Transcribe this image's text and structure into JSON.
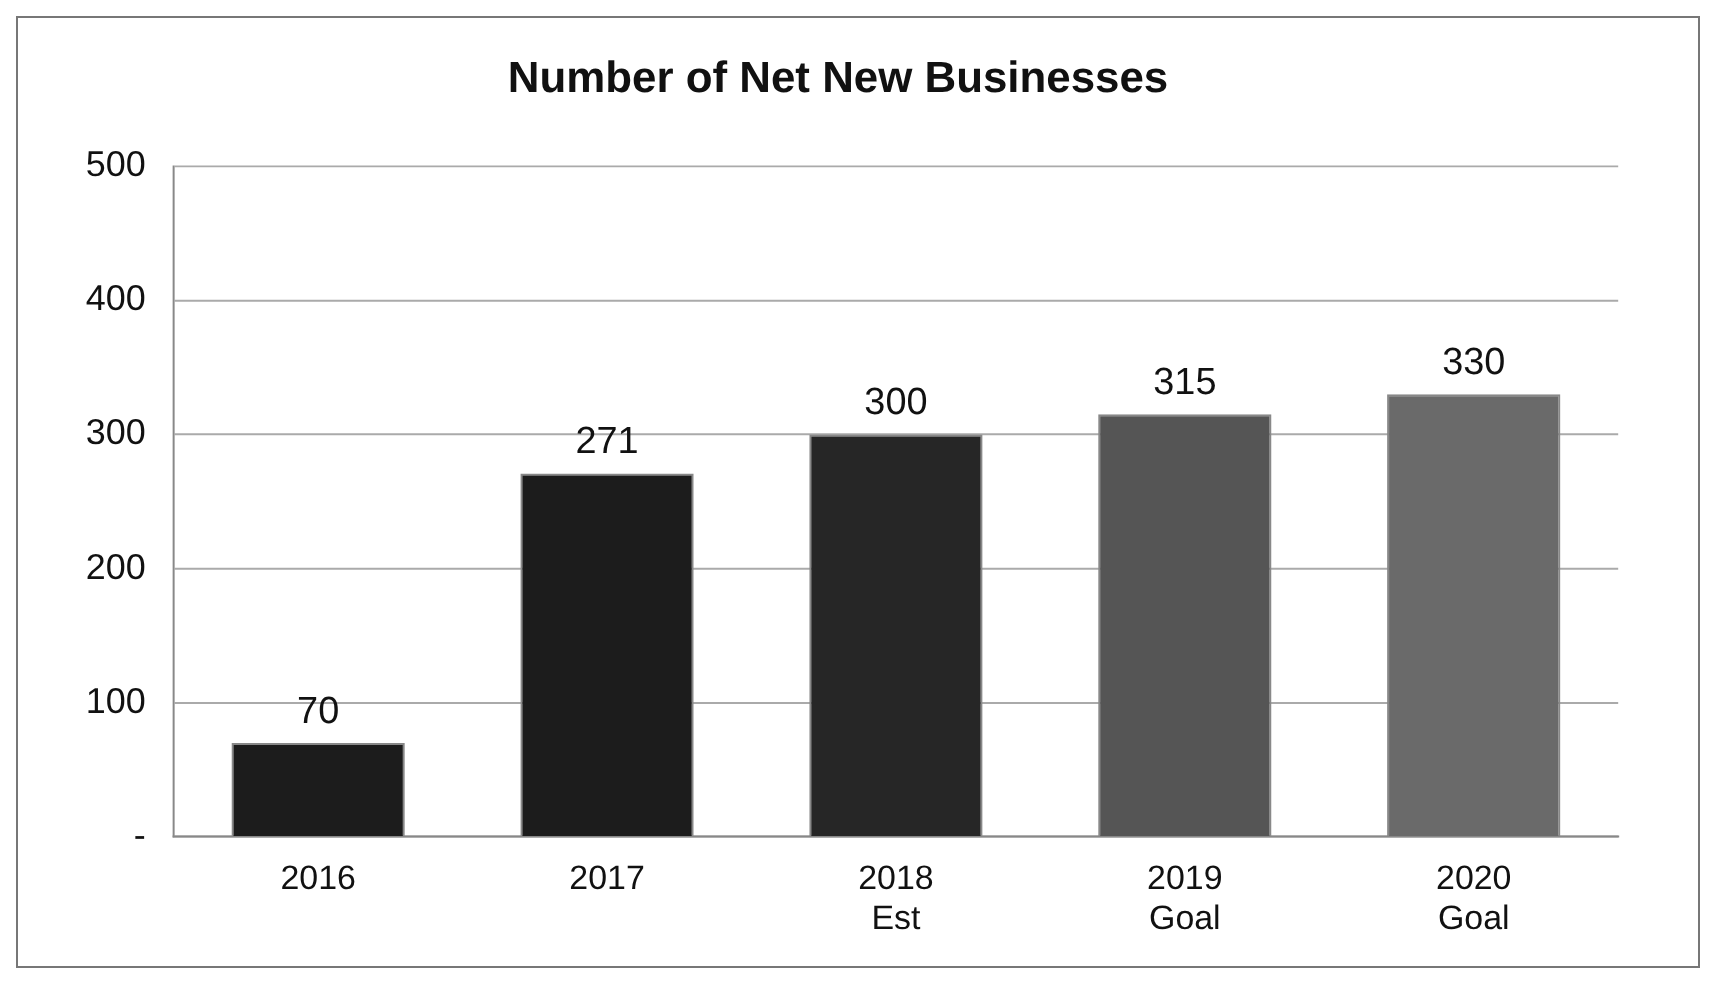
{
  "chart_data": {
    "type": "bar",
    "title": "Number of Net New Businesses",
    "categories": [
      "2016",
      "2017",
      "2018\nEst",
      "2019\nGoal",
      "2020\nGoal"
    ],
    "values": [
      70,
      271,
      300,
      315,
      330
    ],
    "colors": [
      "#1c1c1c",
      "#1c1c1c",
      "#262626",
      "#555555",
      "#6a6a6a"
    ],
    "ylim": [
      0,
      500
    ],
    "yticks": [
      {
        "value": 0,
        "label": "-"
      },
      100,
      200,
      300,
      400,
      500
    ],
    "grid": "y",
    "data_labels": true,
    "legend": false
  }
}
